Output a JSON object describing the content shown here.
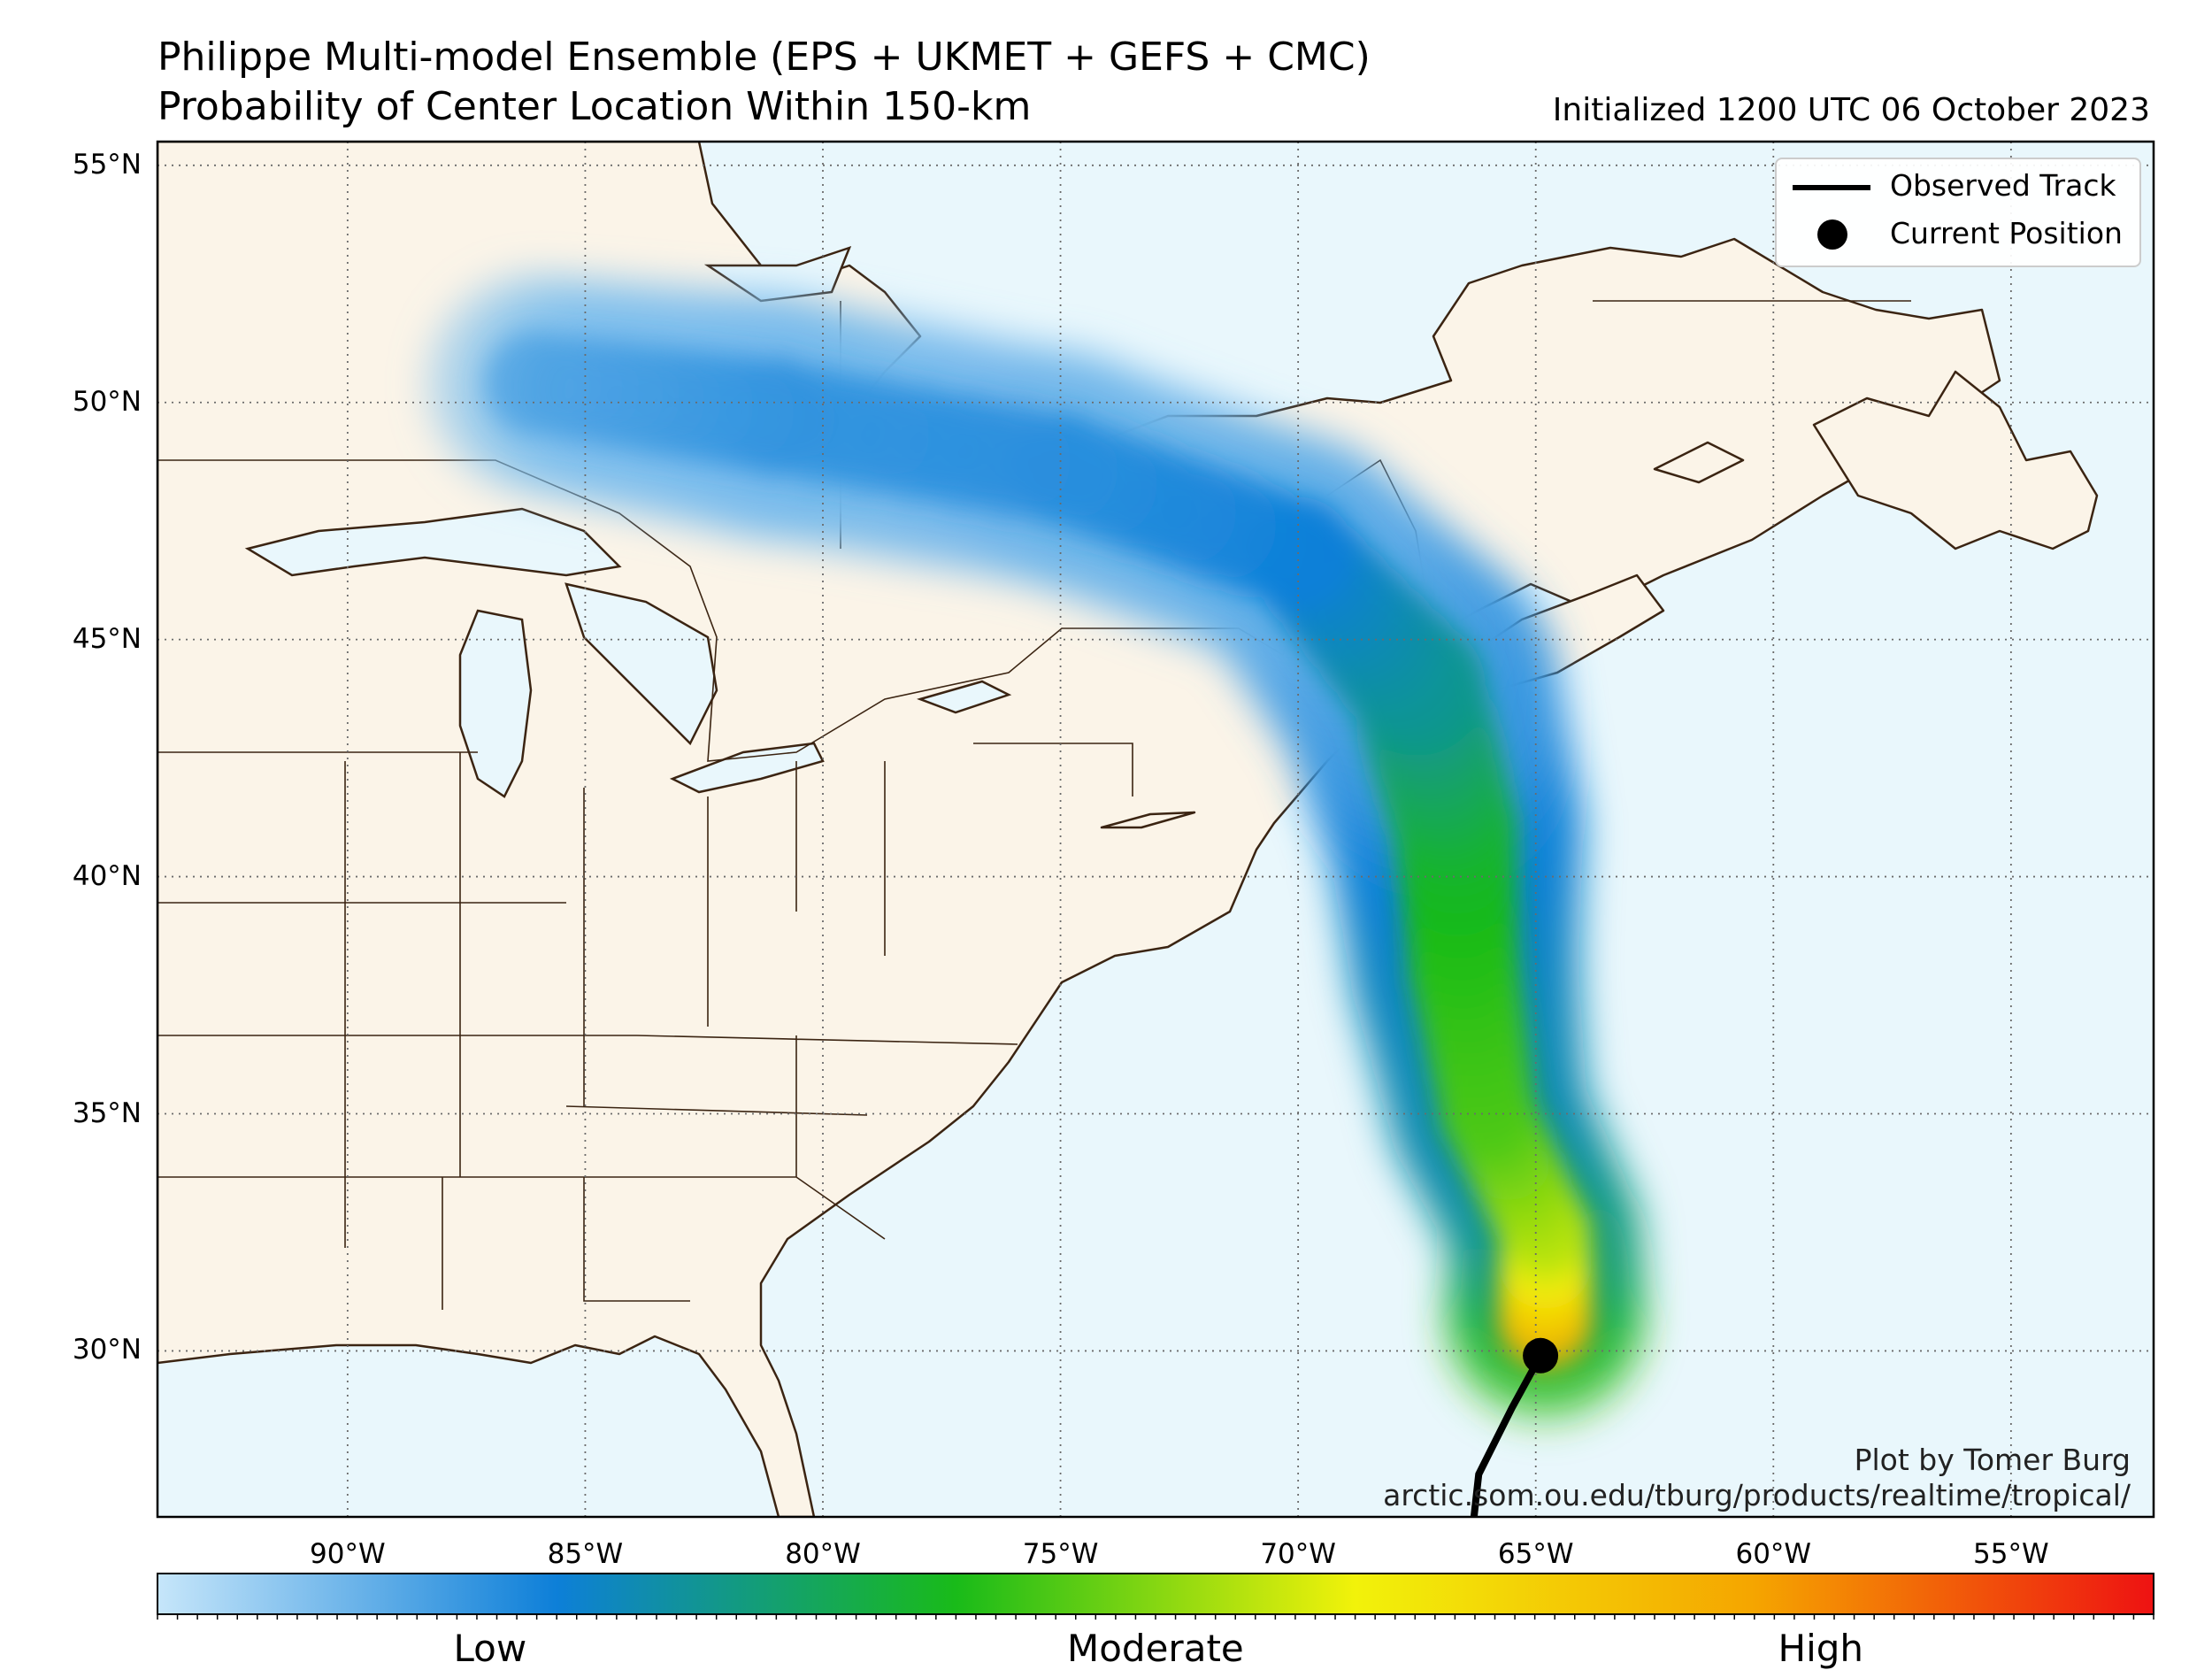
{
  "title_line1": "Philippe Multi-model Ensemble (EPS + UKMET + GEFS + CMC)",
  "title_line2": "Probability of Center Location Within 150-km",
  "initialized": "Initialized 1200 UTC 06 October 2023",
  "map": {
    "lon_range": [
      -94.0,
      -52.0
    ],
    "lat_range": [
      26.5,
      55.5
    ],
    "lat_ticks": [
      {
        "value": 55,
        "label": "55°N"
      },
      {
        "value": 50,
        "label": "50°N"
      },
      {
        "value": 45,
        "label": "45°N"
      },
      {
        "value": 40,
        "label": "40°N"
      },
      {
        "value": 35,
        "label": "35°N"
      },
      {
        "value": 30,
        "label": "30°N"
      }
    ],
    "lon_ticks": [
      {
        "value": -90,
        "label": "90°W"
      },
      {
        "value": -85,
        "label": "85°W"
      },
      {
        "value": -80,
        "label": "80°W"
      },
      {
        "value": -75,
        "label": "75°W"
      },
      {
        "value": -70,
        "label": "70°W"
      },
      {
        "value": -65,
        "label": "65°W"
      },
      {
        "value": -60,
        "label": "60°W"
      },
      {
        "value": -55,
        "label": "55°W"
      }
    ],
    "gridlines": "dotted",
    "colors": {
      "land": "#fbf4e8",
      "ocean": "#e9f7fc",
      "coastline": "#3b2412",
      "border": "#3b2412",
      "track": "#000000"
    }
  },
  "legend": {
    "placement": "top-right",
    "observed_track": "Observed Track",
    "current_position": "Current Position"
  },
  "observed_track": [
    [
      -66.3,
      26.5
    ],
    [
      -66.2,
      27.4
    ],
    [
      -65.5,
      28.8
    ],
    [
      -64.9,
      29.9
    ]
  ],
  "current_position": {
    "lon": -64.9,
    "lat": 29.9
  },
  "probability_swath": [
    {
      "lon": -64.8,
      "lat": 30.6,
      "width_deg": 4.2,
      "level": 0.78
    },
    {
      "lon": -64.8,
      "lat": 32.5,
      "width_deg": 4.0,
      "level": 0.55
    },
    {
      "lon": -66.0,
      "lat": 35.0,
      "width_deg": 4.2,
      "level": 0.45
    },
    {
      "lon": -66.5,
      "lat": 38.0,
      "width_deg": 4.8,
      "level": 0.42
    },
    {
      "lon": -66.7,
      "lat": 41.0,
      "width_deg": 5.4,
      "level": 0.38
    },
    {
      "lon": -67.5,
      "lat": 44.0,
      "width_deg": 6.0,
      "level": 0.28
    },
    {
      "lon": -70.0,
      "lat": 46.8,
      "width_deg": 5.0,
      "level": 0.2
    },
    {
      "lon": -75.0,
      "lat": 48.6,
      "width_deg": 5.0,
      "level": 0.17
    },
    {
      "lon": -81.0,
      "lat": 49.7,
      "width_deg": 5.2,
      "level": 0.16
    },
    {
      "lon": -86.0,
      "lat": 50.4,
      "width_deg": 4.6,
      "level": 0.13
    }
  ],
  "colorbar": {
    "stops": [
      "#c6e6fa",
      "#0d7fd8",
      "#19bb19",
      "#f2f20a",
      "#f5a500",
      "#ee1212"
    ],
    "labels": {
      "low": "Low",
      "moderate": "Moderate",
      "high": "High"
    }
  },
  "credit_line1": "Plot by Tomer Burg",
  "credit_line2": "arctic.som.ou.edu/tburg/products/realtime/tropical/"
}
